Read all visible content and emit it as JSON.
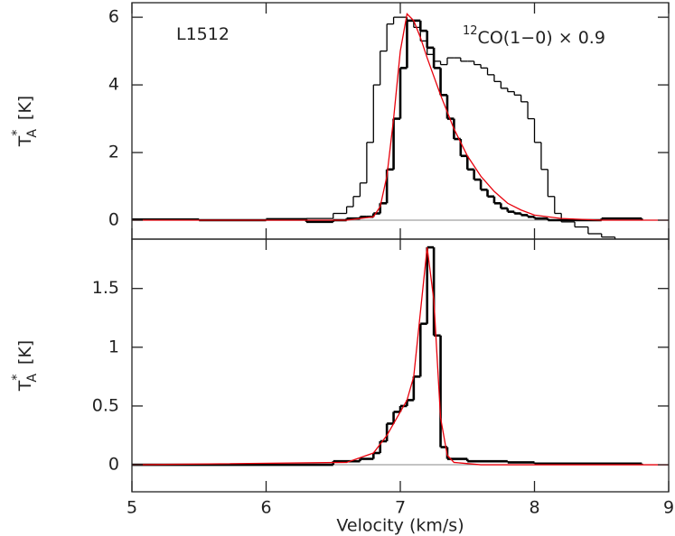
{
  "chart_data": [
    {
      "type": "step-line",
      "annotations": [
        {
          "text": "L1512"
        },
        {
          "superscript": "12",
          "text": "CO(1−0) × 0.9"
        }
      ],
      "y_label": {
        "base": "T",
        "sup": "*",
        "sub": "A",
        "unit": "[K]"
      },
      "xlim": [
        5,
        9
      ],
      "xticks": [
        5,
        6,
        7,
        8,
        9
      ],
      "ylim": [
        -0.56,
        6.43
      ],
      "yticks": [
        0,
        2,
        4,
        6
      ],
      "zero_line": true,
      "series": [
        {
          "style": "step",
          "color": "#000000",
          "width": 2.6,
          "x": [
            5.0,
            5.5,
            6.0,
            6.3,
            6.5,
            6.6,
            6.7,
            6.75,
            6.8,
            6.85,
            6.9,
            6.95,
            7.0,
            7.05,
            7.1,
            7.15,
            7.2,
            7.25,
            7.3,
            7.35,
            7.4,
            7.45,
            7.5,
            7.55,
            7.6,
            7.65,
            7.7,
            7.75,
            7.8,
            7.85,
            7.9,
            7.95,
            8.0,
            8.1,
            8.5,
            8.8
          ],
          "values": [
            0.02,
            0.0,
            0.03,
            -0.05,
            0.0,
            0.05,
            0.1,
            0.1,
            0.2,
            0.5,
            1.5,
            3.0,
            4.5,
            5.9,
            5.9,
            5.6,
            5.1,
            4.5,
            3.7,
            3.0,
            2.4,
            1.9,
            1.5,
            1.2,
            0.9,
            0.7,
            0.5,
            0.35,
            0.25,
            0.2,
            0.15,
            0.1,
            0.05,
            0.0,
            0.05,
            0.0
          ]
        },
        {
          "style": "step",
          "color": "#000000",
          "width": 1.3,
          "x": [
            6.0,
            6.3,
            6.5,
            6.6,
            6.65,
            6.7,
            6.75,
            6.8,
            6.85,
            6.9,
            6.95,
            7.0,
            7.05,
            7.1,
            7.15,
            7.2,
            7.25,
            7.3,
            7.35,
            7.4,
            7.45,
            7.5,
            7.55,
            7.6,
            7.65,
            7.7,
            7.75,
            7.8,
            7.85,
            7.9,
            7.95,
            8.0,
            8.05,
            8.1,
            8.15,
            8.2,
            8.3,
            8.4,
            8.5,
            8.6
          ],
          "values": [
            0.0,
            0.05,
            0.2,
            0.4,
            0.7,
            1.1,
            2.3,
            4.0,
            5.0,
            5.8,
            6.0,
            6.0,
            5.9,
            5.7,
            5.3,
            4.9,
            4.7,
            4.6,
            4.8,
            4.8,
            4.7,
            4.7,
            4.6,
            4.5,
            4.3,
            4.1,
            3.9,
            3.8,
            3.7,
            3.5,
            3.0,
            2.3,
            1.5,
            0.7,
            0.2,
            -0.05,
            -0.2,
            -0.4,
            -0.5,
            -0.55
          ]
        },
        {
          "style": "line",
          "color": "#e8000b",
          "width": 1.3,
          "x": [
            5.0,
            6.6,
            6.8,
            6.85,
            6.9,
            6.95,
            7.0,
            7.05,
            7.1,
            7.15,
            7.2,
            7.3,
            7.4,
            7.5,
            7.6,
            7.7,
            7.8,
            7.9,
            8.0,
            8.2,
            8.5,
            9.0
          ],
          "values": [
            0.0,
            0.0,
            0.1,
            0.4,
            1.3,
            3.0,
            5.0,
            6.1,
            5.9,
            5.4,
            4.8,
            3.7,
            2.7,
            1.9,
            1.3,
            0.85,
            0.5,
            0.3,
            0.15,
            0.05,
            0.0,
            0.0
          ]
        }
      ]
    },
    {
      "type": "step-line",
      "x_label": "Velocity (km/s)",
      "y_label": {
        "base": "T",
        "sup": "*",
        "sub": "A",
        "unit": "[K]"
      },
      "xlim": [
        5,
        9
      ],
      "xticks": [
        5,
        6,
        7,
        8,
        9
      ],
      "ylim": [
        -0.23,
        1.92
      ],
      "yticks": [
        0,
        0.5,
        1,
        1.5
      ],
      "zero_line": true,
      "series": [
        {
          "style": "step",
          "color": "#000000",
          "width": 2.6,
          "x": [
            5.0,
            6.5,
            6.7,
            6.8,
            6.85,
            6.9,
            6.95,
            7.0,
            7.05,
            7.1,
            7.15,
            7.2,
            7.25,
            7.3,
            7.35,
            7.5,
            7.8,
            8.0,
            8.8
          ],
          "values": [
            0.0,
            0.03,
            0.05,
            0.1,
            0.2,
            0.35,
            0.45,
            0.5,
            0.55,
            0.75,
            1.2,
            1.85,
            1.1,
            0.15,
            0.05,
            0.03,
            0.02,
            0.01,
            0.0
          ]
        },
        {
          "style": "line",
          "color": "#e8000b",
          "width": 1.3,
          "x": [
            5.0,
            6.6,
            6.8,
            6.9,
            7.0,
            7.05,
            7.1,
            7.15,
            7.2,
            7.25,
            7.3,
            7.35,
            7.4,
            7.6,
            9.0
          ],
          "values": [
            0.0,
            0.02,
            0.1,
            0.25,
            0.45,
            0.55,
            0.75,
            1.3,
            1.85,
            1.4,
            0.4,
            0.08,
            0.02,
            0.0,
            0.0
          ]
        }
      ]
    }
  ]
}
